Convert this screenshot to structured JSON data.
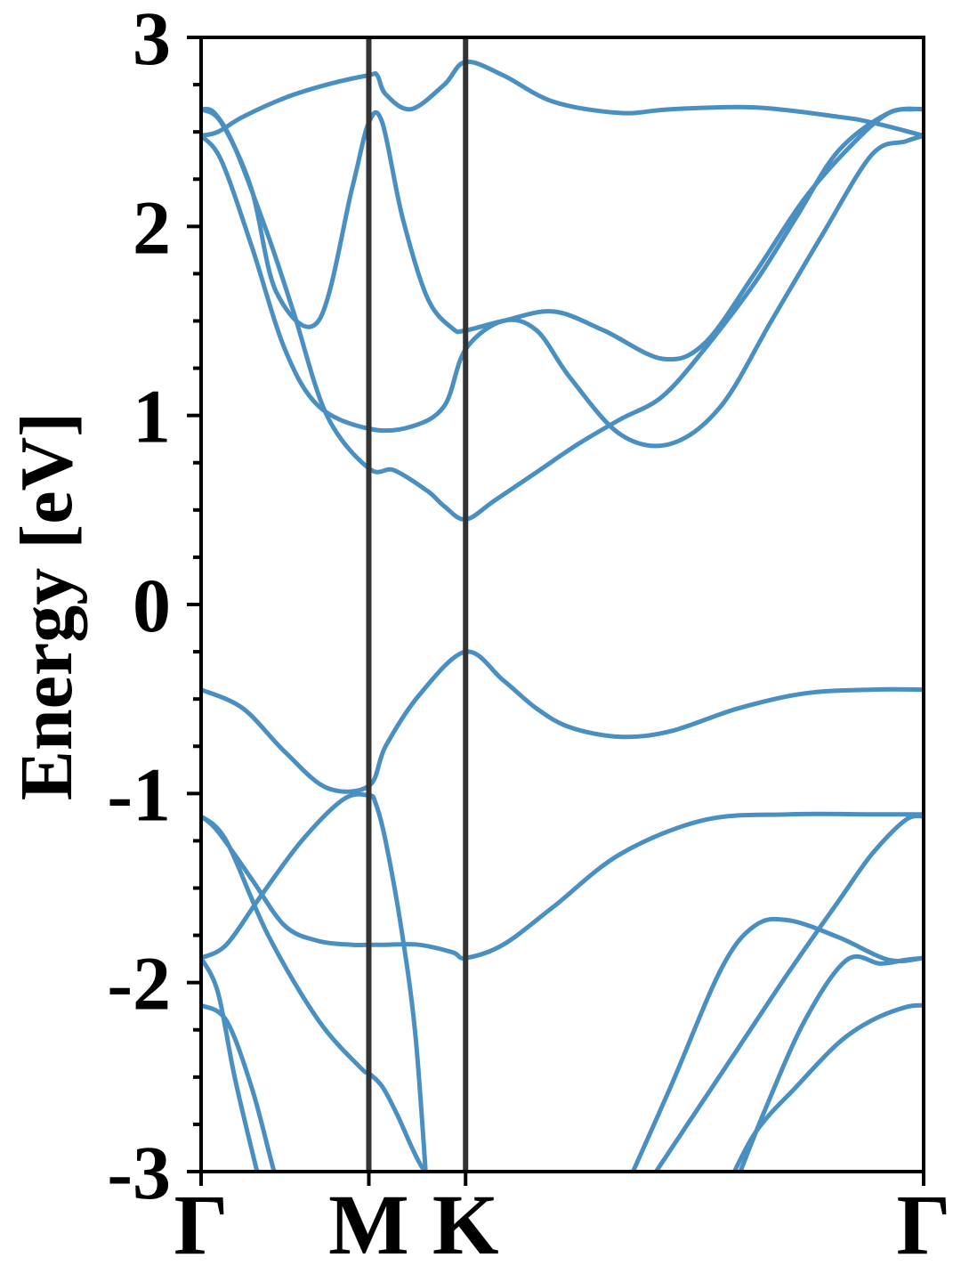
{
  "chart_data": {
    "type": "line",
    "title": "",
    "xlabel": "",
    "ylabel": "Energy [eV]",
    "ylim": [
      -3,
      3
    ],
    "y_ticks": [
      "3",
      "2",
      "1",
      "0",
      "-1",
      "-2",
      "-3"
    ],
    "y_tick_values": [
      3,
      2,
      1,
      0,
      -1,
      -2,
      -3
    ],
    "x_ticks": [
      "Γ",
      "M",
      "K",
      "Γ"
    ],
    "x_tick_values": [
      0,
      1,
      1.577,
      4.308
    ],
    "xlim": [
      0,
      4.308
    ],
    "high_symmetry_lines": [
      1,
      1.577
    ],
    "grid": false,
    "legend": "none",
    "band_color": "#4a8fc2",
    "symmetry_line_color": "#333333",
    "series": [
      {
        "x": [
          0,
          0.25,
          0.5,
          0.75,
          1.0,
          1.1,
          1.3,
          1.577,
          1.8,
          2.0,
          2.2,
          2.5,
          2.8,
          3.2,
          3.6,
          4.0,
          4.308
        ],
        "values": [
          -0.45,
          -0.55,
          -0.78,
          -0.97,
          -0.96,
          -0.75,
          -0.48,
          -0.25,
          -0.4,
          -0.55,
          -0.65,
          -0.7,
          -0.67,
          -0.55,
          -0.47,
          -0.45,
          -0.45
        ]
      },
      {
        "x": [
          0,
          0.1,
          0.3,
          0.5,
          0.7,
          0.9,
          1.0,
          1.1,
          1.3,
          1.5,
          1.577,
          1.8,
          2.1,
          2.5,
          3.0,
          3.5,
          4.0,
          4.308
        ],
        "values": [
          -1.12,
          -1.2,
          -1.45,
          -1.7,
          -1.78,
          -1.8,
          -1.8,
          -1.8,
          -1.8,
          -1.84,
          -1.87,
          -1.8,
          -1.6,
          -1.32,
          -1.14,
          -1.11,
          -1.11,
          -1.11
        ]
      },
      {
        "x": [
          0,
          0.15,
          0.4,
          0.7,
          0.95,
          1.0,
          1.08,
          1.17,
          1.3,
          1.45
        ],
        "values": [
          -1.12,
          -1.25,
          -1.75,
          -2.2,
          -2.45,
          -2.48,
          -2.55,
          -2.7,
          -2.95,
          -3.15
        ]
      },
      {
        "x": [
          0,
          0.15,
          0.35,
          0.6,
          0.85,
          1.0,
          1.04,
          1.1,
          1.2,
          1.28,
          1.35
        ],
        "values": [
          -1.87,
          -1.8,
          -1.55,
          -1.25,
          -1.03,
          -1.01,
          -1.05,
          -1.25,
          -1.75,
          -2.3,
          -3.15
        ]
      },
      {
        "x": [
          0,
          0.1,
          0.2,
          0.32,
          0.38
        ],
        "values": [
          -1.87,
          -2.05,
          -2.5,
          -2.95,
          -3.15
        ]
      },
      {
        "x": [
          0,
          0.15,
          0.3,
          0.42,
          0.48
        ],
        "values": [
          -2.12,
          -2.2,
          -2.55,
          -2.95,
          -3.15
        ]
      },
      {
        "x": [
          2.5,
          2.8,
          3.1,
          3.3,
          3.5,
          3.8,
          4.1,
          4.308
        ],
        "values": [
          -3.15,
          -2.55,
          -1.93,
          -1.7,
          -1.67,
          -1.76,
          -1.88,
          -1.87
        ]
      },
      {
        "x": [
          2.6,
          2.9,
          3.2,
          3.5,
          3.8,
          4.0,
          4.2,
          4.308
        ],
        "values": [
          -3.15,
          -2.75,
          -2.35,
          -1.95,
          -1.57,
          -1.32,
          -1.14,
          -1.12
        ]
      },
      {
        "x": [
          3.15,
          3.35,
          3.6,
          3.85,
          4.05,
          4.2,
          4.308
        ],
        "values": [
          -3.15,
          -2.7,
          -2.2,
          -1.88,
          -1.9,
          -1.88,
          -1.87
        ]
      },
      {
        "x": [
          3.1,
          3.3,
          3.55,
          3.8,
          4.0,
          4.2,
          4.308
        ],
        "values": [
          -3.15,
          -2.8,
          -2.55,
          -2.32,
          -2.2,
          -2.13,
          -2.12
        ]
      },
      {
        "x": [
          0,
          0.1,
          0.25,
          0.5,
          0.75,
          1.0,
          1.05,
          1.1,
          1.25,
          1.45,
          1.577,
          1.8,
          2.1,
          2.5,
          2.8,
          3.3,
          3.8,
          4.0,
          4.308
        ],
        "values": [
          2.48,
          2.5,
          2.58,
          2.68,
          2.75,
          2.8,
          2.8,
          2.7,
          2.62,
          2.75,
          2.87,
          2.8,
          2.66,
          2.6,
          2.62,
          2.63,
          2.58,
          2.55,
          2.48
        ]
      },
      {
        "x": [
          0,
          0.12,
          0.3,
          0.45,
          0.7,
          0.9,
          1.0,
          1.08,
          1.2,
          1.35,
          1.5,
          1.577,
          1.8,
          2.1,
          2.4,
          2.75,
          3.0,
          3.3,
          3.6,
          3.9,
          4.1,
          4.25,
          4.308
        ],
        "values": [
          2.62,
          2.55,
          2.2,
          1.65,
          1.5,
          2.2,
          2.55,
          2.55,
          2.05,
          1.62,
          1.46,
          1.45,
          1.5,
          1.55,
          1.45,
          1.3,
          1.38,
          1.75,
          2.15,
          2.45,
          2.6,
          2.62,
          2.62
        ]
      },
      {
        "x": [
          0,
          0.12,
          0.3,
          0.5,
          0.7,
          1.0,
          1.25,
          1.45,
          1.577,
          1.8,
          2.0,
          2.2,
          2.5,
          2.8,
          3.1,
          3.4,
          3.7,
          4.0,
          4.2,
          4.308
        ],
        "values": [
          2.48,
          2.35,
          1.9,
          1.35,
          1.05,
          0.93,
          0.94,
          1.05,
          1.35,
          1.5,
          1.45,
          1.2,
          0.9,
          0.85,
          1.05,
          1.5,
          1.95,
          2.38,
          2.45,
          2.48
        ]
      },
      {
        "x": [
          0,
          0.08,
          0.2,
          0.4,
          0.55,
          0.75,
          1.0,
          1.15,
          1.35,
          1.45,
          1.577,
          1.75,
          2.0,
          2.25,
          2.5,
          2.75,
          3.0,
          3.3,
          3.55,
          3.8,
          4.1,
          4.308
        ],
        "values": [
          2.62,
          2.6,
          2.42,
          1.95,
          1.55,
          1.0,
          0.72,
          0.71,
          0.6,
          0.52,
          0.45,
          0.55,
          0.7,
          0.85,
          0.98,
          1.1,
          1.35,
          1.7,
          2.05,
          2.4,
          2.6,
          2.62
        ]
      }
    ]
  }
}
